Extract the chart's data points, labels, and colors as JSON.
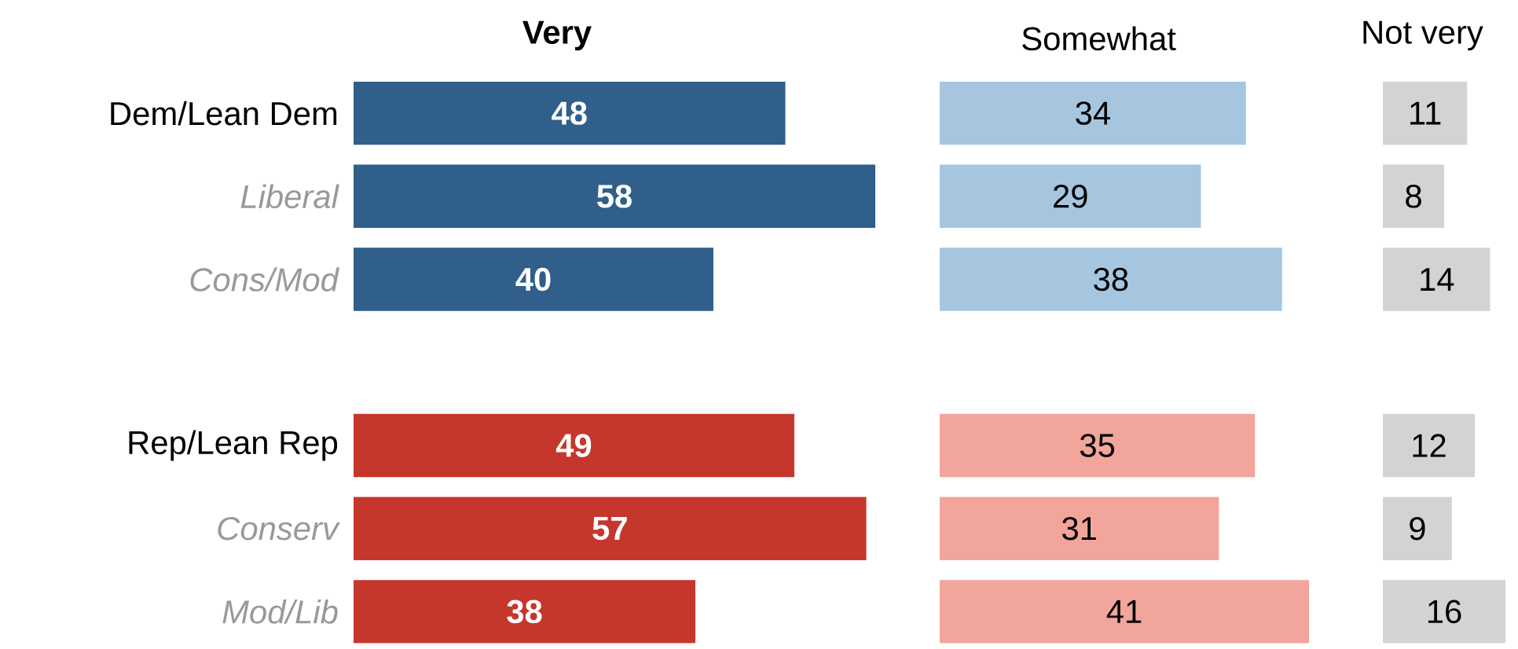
{
  "chart_data": [
    {
      "type": "bar",
      "orientation": "horizontal",
      "title": "Very",
      "categories": [
        "Dem/Lean Dem",
        "Liberal",
        "Cons/Mod",
        null,
        "Rep/Lean Rep",
        "Conserv",
        "Mod/Lib"
      ],
      "values": [
        48,
        58,
        40,
        null,
        49,
        57,
        38
      ],
      "colors": [
        "#2f5f8a",
        "#2f5f8a",
        "#2f5f8a",
        null,
        "#c5372c",
        "#c5372c",
        "#c5372c"
      ],
      "data_labels": true,
      "tick_labels": "y"
    },
    {
      "type": "bar",
      "orientation": "horizontal",
      "title": "Somewhat",
      "categories": [
        null,
        null,
        null,
        null,
        null,
        null,
        null
      ],
      "values": [
        34,
        29,
        38,
        null,
        35,
        31,
        41
      ],
      "colors": [
        "#a6c6e0",
        "#a6c6e0",
        "#a6c6e0",
        null,
        "#f1a59b",
        "#f1a59b",
        "#f1a59b"
      ],
      "data_labels": true,
      "tick_labels": false
    },
    {
      "type": "bar",
      "orientation": "horizontal",
      "title": "Not very",
      "categories": [
        null,
        null,
        null,
        null,
        null,
        null,
        null
      ],
      "values": [
        11,
        8,
        14,
        null,
        12,
        9,
        16
      ],
      "colors": [
        "#d3d3d3",
        "#d3d3d3",
        "#d3d3d3",
        null,
        "#d3d3d3",
        "#d3d3d3",
        "#d3d3d3"
      ],
      "data_labels": true,
      "tick_labels": false
    }
  ]
}
